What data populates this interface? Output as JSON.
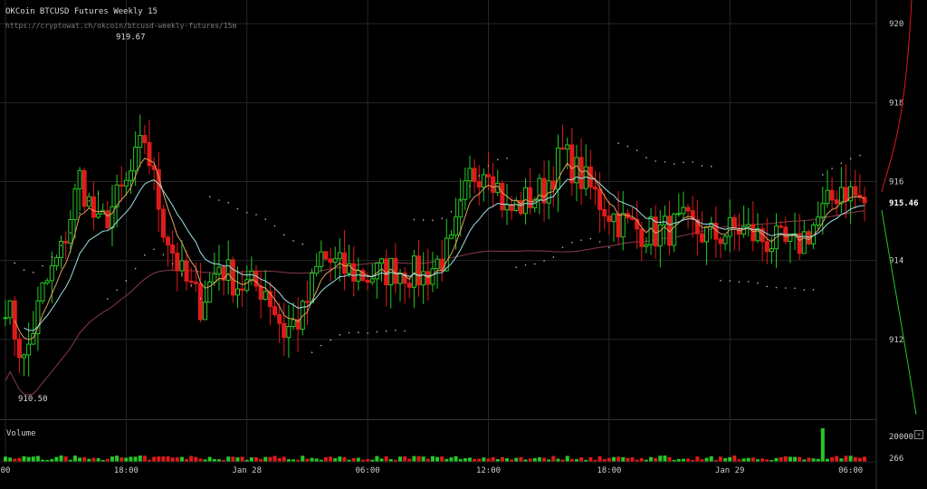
{
  "header": {
    "title": "OKCoin BTCUSD Futures Weekly 15",
    "url": "https://cryptowat.ch/okcoin/btcusd-weekly-futures/15m"
  },
  "volume_panel": {
    "title": "Volume",
    "close_label": "×"
  },
  "colors": {
    "background": "#000000",
    "up": "#26c826",
    "down": "#e01a1a",
    "grid": "#262626",
    "ema_fast": "#e0a060",
    "ema_slow": "#9fe0e8",
    "sma_long": "#8a3a4a",
    "sar": "#bbbbbb"
  },
  "chart_data": [
    {
      "type": "candlestick",
      "title": "OKCoin BTCUSD Futures Weekly 15",
      "x_ticks": [
        "00",
        "18:00",
        "Jan 28",
        "06:00",
        "12:00",
        "18:00",
        "Jan 29",
        "06:00"
      ],
      "y_ticks": [
        912,
        914,
        916,
        918,
        920
      ],
      "ylim": [
        910.0,
        920.6
      ],
      "current_price": "915.46",
      "annotations": {
        "high": "919.67",
        "low": "910.50"
      },
      "n_candles": 186,
      "grid": true,
      "keypoints": [
        [
          0,
          913.0
        ],
        [
          4,
          911.4
        ],
        [
          8,
          913.2
        ],
        [
          12,
          914.2
        ],
        [
          16,
          916.1
        ],
        [
          20,
          914.8
        ],
        [
          26,
          915.9
        ],
        [
          30,
          917.1
        ],
        [
          34,
          914.9
        ],
        [
          38,
          913.6
        ],
        [
          42,
          912.9
        ],
        [
          46,
          913.9
        ],
        [
          50,
          913.4
        ],
        [
          56,
          913.3
        ],
        [
          60,
          912.2
        ],
        [
          64,
          912.6
        ],
        [
          68,
          914.1
        ],
        [
          72,
          913.8
        ],
        [
          78,
          913.6
        ],
        [
          84,
          913.8
        ],
        [
          90,
          913.6
        ],
        [
          96,
          914.3
        ],
        [
          100,
          916.1
        ],
        [
          104,
          916.5
        ],
        [
          108,
          915.2
        ],
        [
          112,
          915.5
        ],
        [
          116,
          915.8
        ],
        [
          120,
          916.7
        ],
        [
          124,
          916.1
        ],
        [
          128,
          915.5
        ],
        [
          132,
          915.0
        ],
        [
          136,
          914.8
        ],
        [
          140,
          914.7
        ],
        [
          146,
          914.9
        ],
        [
          152,
          914.6
        ],
        [
          158,
          914.8
        ],
        [
          164,
          914.5
        ],
        [
          170,
          914.3
        ],
        [
          176,
          915.2
        ],
        [
          180,
          915.9
        ],
        [
          185,
          915.46
        ]
      ],
      "volume_ticks": [
        "20000",
        "266"
      ],
      "volume_spike": {
        "index": 176,
        "value": 19500
      }
    }
  ]
}
